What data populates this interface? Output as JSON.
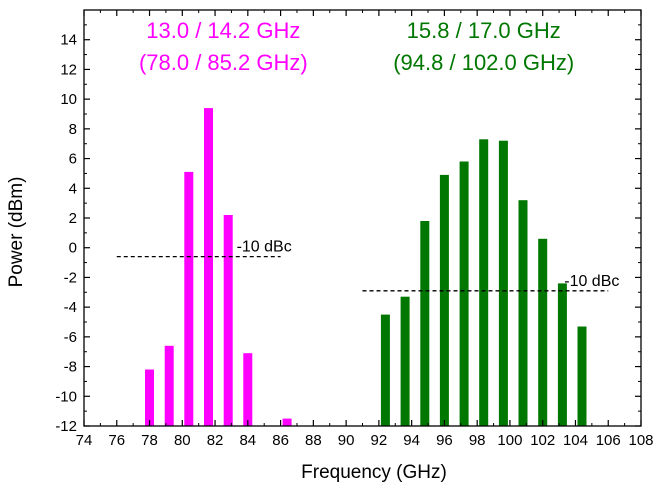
{
  "chart_data": {
    "type": "bar",
    "xlabel": "Frequency (GHz)",
    "ylabel": "Power (dBm)",
    "xlim": [
      74,
      108
    ],
    "ylim": [
      -12,
      16
    ],
    "xticks": [
      74,
      76,
      78,
      80,
      82,
      84,
      86,
      88,
      90,
      92,
      94,
      96,
      98,
      100,
      102,
      104,
      106,
      108
    ],
    "yticks": [
      -12,
      -10,
      -8,
      -6,
      -4,
      -2,
      0,
      2,
      4,
      6,
      8,
      10,
      12,
      14
    ],
    "bar_baseline": -12,
    "grid": false,
    "series": [
      {
        "color": "#ff00ff",
        "x": [
          78.0,
          79.2,
          80.4,
          81.6,
          82.8,
          84.0,
          86.4
        ],
        "values": [
          -8.2,
          -6.6,
          5.1,
          9.4,
          2.2,
          -7.1,
          -11.5
        ]
      },
      {
        "color": "#007700",
        "x": [
          92.4,
          93.6,
          94.8,
          96.0,
          97.2,
          98.4,
          99.6,
          100.8,
          102.0,
          103.2,
          104.4
        ],
        "values": [
          -4.5,
          -3.3,
          1.8,
          4.9,
          5.8,
          7.3,
          7.2,
          3.2,
          0.6,
          -2.4,
          -5.3
        ]
      }
    ],
    "group_labels": [
      {
        "line1": "13.0 / 14.2 GHz",
        "line2": "(78.0 / 85.2 GHz)",
        "color": "#ff00ff"
      },
      {
        "line1": "15.8 / 17.0 GHz",
        "line2": "(94.8 / 102.0 GHz)",
        "color": "#007700"
      }
    ],
    "reference_lines": [
      {
        "label": "-10 dBc",
        "y": -0.6,
        "x_start": 76.0,
        "x_end": 86.0
      },
      {
        "label": "-10 dBc",
        "y": -2.9,
        "x_start": 91.0,
        "x_end": 106.0
      }
    ]
  }
}
